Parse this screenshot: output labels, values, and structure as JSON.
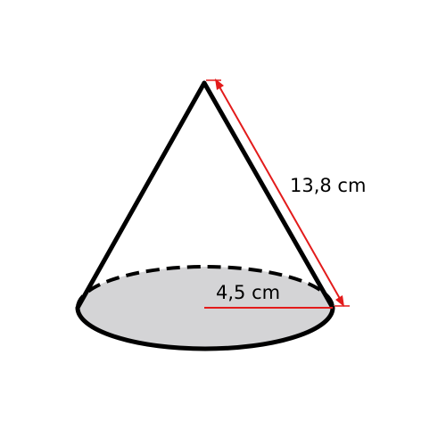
{
  "figure": {
    "colors": {
      "outline": "#000000",
      "base_fill": "#d4d4d6",
      "dimension": "#e31b1b",
      "background": "#ffffff"
    },
    "labels": {
      "slant_height": "13,8 cm",
      "radius": "4,5 cm"
    },
    "values": {
      "slant_height_cm": 13.8,
      "radius_cm": 4.5
    }
  }
}
